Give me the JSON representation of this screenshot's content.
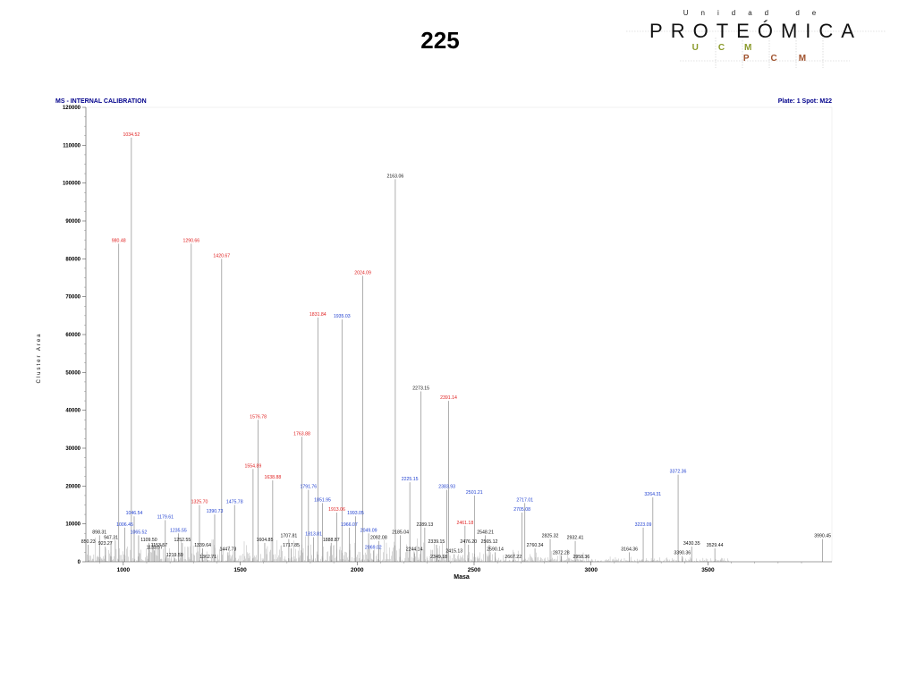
{
  "page": {
    "title": "225"
  },
  "logo": {
    "top_text": "Unidad de",
    "main_text": "PROTEÓMICA",
    "sub_text_1": "UCM",
    "sub_text_2": "PCM"
  },
  "header": {
    "left": "MS - INTERNAL CALIBRATION",
    "right": "Plate: 1 Spot: M22"
  },
  "colors": {
    "red": "#e02020",
    "blue": "#1f3fd0",
    "black": "#111111",
    "header": "#00008b"
  },
  "chart_data": {
    "type": "bar",
    "title": "",
    "xlabel": "Masa",
    "ylabel": "Cluster Area",
    "xlim": [
      840,
      4030
    ],
    "ylim": [
      0,
      120000
    ],
    "xticks": [
      "1000",
      "1500",
      "2000",
      "2500",
      "3000",
      "3500"
    ],
    "yticks": [
      "0",
      "10000",
      "20000",
      "30000",
      "40000",
      "50000",
      "60000",
      "70000",
      "80000",
      "90000",
      "100000",
      "110000",
      "120000"
    ],
    "grid": false,
    "legend": "none",
    "peaks": [
      {
        "mass": 850.23,
        "label": "850.23",
        "value": 4500,
        "color": "black"
      },
      {
        "mass": 898.31,
        "label": "898.31",
        "value": 7000,
        "color": "black"
      },
      {
        "mass": 923.27,
        "label": "923.27",
        "value": 4000,
        "color": "black"
      },
      {
        "mass": 947.31,
        "label": "947.31",
        "value": 5500,
        "color": "black"
      },
      {
        "mass": 980.48,
        "label": "980.48",
        "value": 84000,
        "color": "red"
      },
      {
        "mass": 1006.45,
        "label": "1006.45",
        "value": 9000,
        "color": "blue"
      },
      {
        "mass": 1034.52,
        "label": "1034.52",
        "value": 112000,
        "color": "red"
      },
      {
        "mass": 1046.54,
        "label": "1046.54",
        "value": 12000,
        "color": "blue"
      },
      {
        "mass": 1065.52,
        "label": "1065.52",
        "value": 7000,
        "color": "blue"
      },
      {
        "mass": 1109.5,
        "label": "1109.50",
        "value": 5000,
        "color": "black"
      },
      {
        "mass": 1133.57,
        "label": "1133.57",
        "value": 3000,
        "color": "black"
      },
      {
        "mass": 1153.57,
        "label": "1153.57",
        "value": 3500,
        "color": "black"
      },
      {
        "mass": 1179.61,
        "label": "1179.61",
        "value": 11000,
        "color": "blue"
      },
      {
        "mass": 1219.59,
        "label": "1219.59",
        "value": 1000,
        "color": "black"
      },
      {
        "mass": 1235.55,
        "label": "1235.55",
        "value": 7500,
        "color": "blue"
      },
      {
        "mass": 1252.55,
        "label": "1252.55",
        "value": 5000,
        "color": "black"
      },
      {
        "mass": 1290.66,
        "label": "1290.66",
        "value": 84000,
        "color": "red"
      },
      {
        "mass": 1325.7,
        "label": "1325.70",
        "value": 15000,
        "color": "red"
      },
      {
        "mass": 1339.64,
        "label": "1339.64",
        "value": 3500,
        "color": "black"
      },
      {
        "mass": 1362.71,
        "label": "1362.71",
        "value": 500,
        "color": "black"
      },
      {
        "mass": 1390.73,
        "label": "1390.73",
        "value": 12500,
        "color": "blue"
      },
      {
        "mass": 1420.67,
        "label": "1420.67",
        "value": 80000,
        "color": "red"
      },
      {
        "mass": 1447.73,
        "label": "1447.73",
        "value": 2500,
        "color": "black"
      },
      {
        "mass": 1475.78,
        "label": "1475.78",
        "value": 15000,
        "color": "blue"
      },
      {
        "mass": 1554.89,
        "label": "1554.89",
        "value": 24500,
        "color": "red"
      },
      {
        "mass": 1576.78,
        "label": "1576.78",
        "value": 37500,
        "color": "red"
      },
      {
        "mass": 1604.85,
        "label": "1604.85",
        "value": 5000,
        "color": "black"
      },
      {
        "mass": 1638.88,
        "label": "1638.88",
        "value": 21500,
        "color": "red"
      },
      {
        "mass": 1707.81,
        "label": "1707.81",
        "value": 6000,
        "color": "black"
      },
      {
        "mass": 1717.85,
        "label": "1717.85",
        "value": 3500,
        "color": "black"
      },
      {
        "mass": 1763.88,
        "label": "1763.88",
        "value": 33000,
        "color": "red"
      },
      {
        "mass": 1791.76,
        "label": "1791.76",
        "value": 19000,
        "color": "blue"
      },
      {
        "mass": 1813.81,
        "label": "1813.81",
        "value": 6500,
        "color": "blue"
      },
      {
        "mass": 1831.84,
        "label": "1831.84",
        "value": 64500,
        "color": "red"
      },
      {
        "mass": 1851.95,
        "label": "1851.95",
        "value": 15500,
        "color": "blue"
      },
      {
        "mass": 1888.87,
        "label": "1888.87",
        "value": 5000,
        "color": "black"
      },
      {
        "mass": 1913.06,
        "label": "1913.06",
        "value": 13000,
        "color": "red"
      },
      {
        "mass": 1935.03,
        "label": "1935.03",
        "value": 64000,
        "color": "blue"
      },
      {
        "mass": 1966.07,
        "label": "1966.07",
        "value": 9000,
        "color": "blue"
      },
      {
        "mass": 1993.05,
        "label": "1993.05",
        "value": 12000,
        "color": "blue"
      },
      {
        "mass": 2024.09,
        "label": "2024.09",
        "value": 75500,
        "color": "red"
      },
      {
        "mass": 2049.09,
        "label": "2049.09",
        "value": 7500,
        "color": "blue"
      },
      {
        "mass": 2069.02,
        "label": "2069.02",
        "value": 3000,
        "color": "blue"
      },
      {
        "mass": 2092.08,
        "label": "2092.08",
        "value": 5500,
        "color": "black"
      },
      {
        "mass": 2163.06,
        "label": "2163.06",
        "value": 101000,
        "color": "black"
      },
      {
        "mass": 2185.04,
        "label": "2185.04",
        "value": 7000,
        "color": "black"
      },
      {
        "mass": 2225.15,
        "label": "2225.15",
        "value": 21000,
        "color": "blue"
      },
      {
        "mass": 2244.14,
        "label": "2244.14",
        "value": 2500,
        "color": "black"
      },
      {
        "mass": 2273.15,
        "label": "2273.15",
        "value": 45000,
        "color": "black"
      },
      {
        "mass": 2289.13,
        "label": "2289.13",
        "value": 9000,
        "color": "black"
      },
      {
        "mass": 2349.18,
        "label": "2349.18",
        "value": 500,
        "color": "black"
      },
      {
        "mass": 2339.15,
        "label": "2339.15",
        "value": 4500,
        "color": "black"
      },
      {
        "mass": 2383.93,
        "label": "2383.93",
        "value": 19000,
        "color": "blue"
      },
      {
        "mass": 2391.14,
        "label": "2391.14",
        "value": 42500,
        "color": "red"
      },
      {
        "mass": 2415.13,
        "label": "2415.13",
        "value": 2000,
        "color": "black"
      },
      {
        "mass": 2461.18,
        "label": "2461.18",
        "value": 9500,
        "color": "red"
      },
      {
        "mass": 2476.2,
        "label": "2476.20",
        "value": 4500,
        "color": "black"
      },
      {
        "mass": 2501.21,
        "label": "2501.21",
        "value": 17500,
        "color": "blue"
      },
      {
        "mass": 2548.21,
        "label": "2548.21",
        "value": 7000,
        "color": "black"
      },
      {
        "mass": 2565.12,
        "label": "2565.12",
        "value": 4500,
        "color": "black"
      },
      {
        "mass": 2590.14,
        "label": "2590.14",
        "value": 2500,
        "color": "black"
      },
      {
        "mass": 2667.22,
        "label": "2667.22",
        "value": 500,
        "color": "black"
      },
      {
        "mass": 2705.08,
        "label": "2705.08",
        "value": 13000,
        "color": "blue"
      },
      {
        "mass": 2717.01,
        "label": "2717.01",
        "value": 15500,
        "color": "blue"
      },
      {
        "mass": 2760.34,
        "label": "2760.34",
        "value": 3500,
        "color": "black"
      },
      {
        "mass": 2825.32,
        "label": "2825.32",
        "value": 6000,
        "color": "black"
      },
      {
        "mass": 2872.28,
        "label": "2872.28",
        "value": 1500,
        "color": "black"
      },
      {
        "mass": 2932.41,
        "label": "2932.41",
        "value": 5500,
        "color": "black"
      },
      {
        "mass": 2958.36,
        "label": "2958.36",
        "value": 500,
        "color": "black"
      },
      {
        "mass": 3164.36,
        "label": "3164.36",
        "value": 2500,
        "color": "black"
      },
      {
        "mass": 3223.09,
        "label": "3223.09",
        "value": 9000,
        "color": "blue"
      },
      {
        "mass": 3264.31,
        "label": "3264.31",
        "value": 17000,
        "color": "blue"
      },
      {
        "mass": 3372.36,
        "label": "3372.36",
        "value": 23000,
        "color": "blue"
      },
      {
        "mass": 3390.36,
        "label": "3390.36",
        "value": 1500,
        "color": "black"
      },
      {
        "mass": 3430.35,
        "label": "3430.35",
        "value": 4000,
        "color": "black"
      },
      {
        "mass": 3529.44,
        "label": "3529.44",
        "value": 3500,
        "color": "black"
      },
      {
        "mass": 3990.45,
        "label": "3990.45",
        "value": 6000,
        "color": "black"
      }
    ]
  }
}
